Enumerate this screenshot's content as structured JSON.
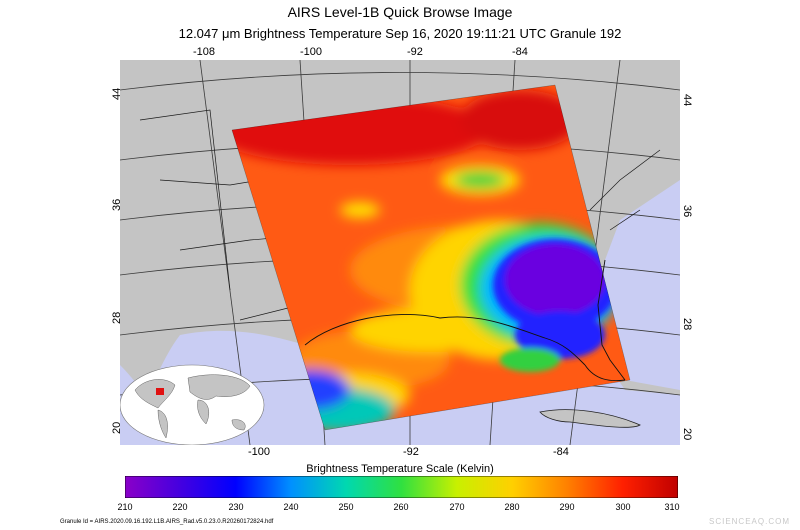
{
  "header": {
    "title": "AIRS Level-1B Quick Browse Image",
    "subtitle": "12.047 μm Brightness Temperature    Sep 16, 2020 19:11:21 UTC   Granule 192"
  },
  "map": {
    "lon_top": [
      "-108",
      "-100",
      "-92",
      "-84"
    ],
    "lon_bottom": [
      "-100",
      "-92",
      "-84"
    ],
    "lat_left": [
      "44",
      "36",
      "28",
      "20"
    ],
    "lat_right": [
      "44",
      "36",
      "28",
      "20"
    ],
    "colors": {
      "land": "#c4c4c4",
      "ocean": "#c9cdf3",
      "grid": "#3a3a3a"
    }
  },
  "colorbar": {
    "title": "Brightness Temperature Scale (Kelvin)",
    "ticks": [
      "210",
      "220",
      "230",
      "240",
      "250",
      "260",
      "270",
      "280",
      "290",
      "300",
      "310"
    ],
    "colors": [
      "#8a00c8",
      "#4400e0",
      "#0000ff",
      "#0090ff",
      "#00d8b0",
      "#30e040",
      "#c8f000",
      "#ffd000",
      "#ff8000",
      "#ff2000",
      "#c00000"
    ]
  },
  "footer": {
    "granule_id": "Granule Id = AIRS.2020.09.16.192.L1B.AIRS_Rad.v5.0.23.0.R20260172824.hdf"
  },
  "watermark": "SCIENCEAQ.COM"
}
